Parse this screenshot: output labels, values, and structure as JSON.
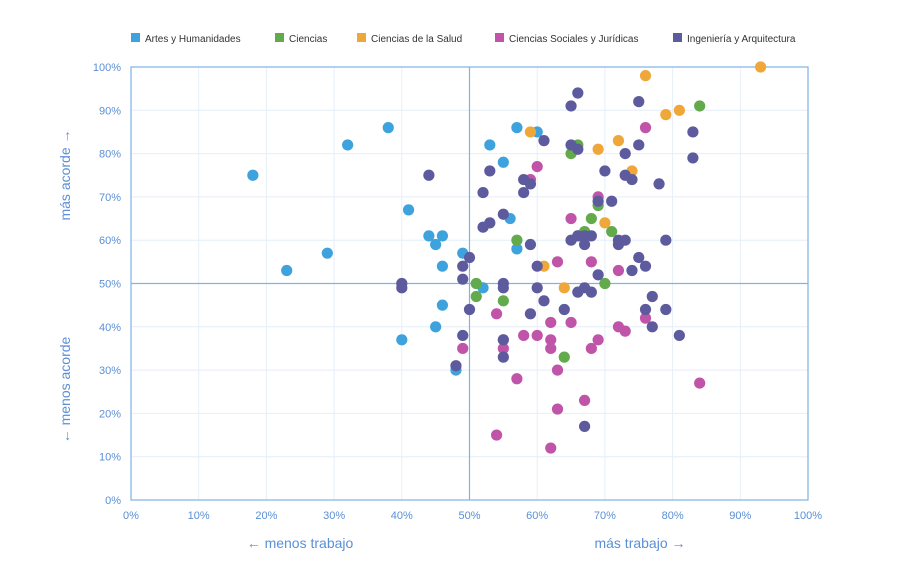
{
  "chart_data": {
    "type": "scatter",
    "xlabel_low": "← menos trabajo",
    "xlabel_high": "más trabajo →",
    "ylabel_low": "← menos acorde",
    "ylabel_high": "más acorde →",
    "xlim": [
      0,
      100
    ],
    "ylim": [
      0,
      100
    ],
    "x_ticks": [
      "0%",
      "10%",
      "20%",
      "30%",
      "40%",
      "50%",
      "60%",
      "70%",
      "80%",
      "90%",
      "100%"
    ],
    "y_ticks": [
      "0%",
      "10%",
      "20%",
      "30%",
      "40%",
      "50%",
      "60%",
      "70%",
      "80%",
      "90%",
      "100%"
    ],
    "grid": true,
    "reference_lines": {
      "x": 50,
      "y": 50
    },
    "legend_position": "top",
    "series": [
      {
        "name": "Artes y Humanidades",
        "color": "#3ea3dc",
        "points": [
          [
            18,
            75
          ],
          [
            23,
            53
          ],
          [
            29,
            57
          ],
          [
            32,
            82
          ],
          [
            38,
            86
          ],
          [
            40,
            37
          ],
          [
            41,
            67
          ],
          [
            44,
            61
          ],
          [
            45,
            59
          ],
          [
            45,
            40
          ],
          [
            46,
            61
          ],
          [
            46,
            54
          ],
          [
            46,
            45
          ],
          [
            48,
            30
          ],
          [
            49,
            57
          ],
          [
            52,
            49
          ],
          [
            53,
            82
          ],
          [
            55,
            78
          ],
          [
            56,
            65
          ],
          [
            57,
            86
          ],
          [
            57,
            58
          ],
          [
            60,
            85
          ]
        ]
      },
      {
        "name": "Ciencias",
        "color": "#62aa4c",
        "points": [
          [
            51,
            50
          ],
          [
            51,
            47
          ],
          [
            55,
            46
          ],
          [
            57,
            60
          ],
          [
            64,
            33
          ],
          [
            65,
            80
          ],
          [
            66,
            82
          ],
          [
            67,
            62
          ],
          [
            68,
            65
          ],
          [
            69,
            68
          ],
          [
            70,
            50
          ],
          [
            71,
            62
          ],
          [
            84,
            91
          ]
        ]
      },
      {
        "name": "Ciencias de la Salud",
        "color": "#f0a73a",
        "points": [
          [
            59,
            85
          ],
          [
            61,
            54
          ],
          [
            64,
            49
          ],
          [
            69,
            81
          ],
          [
            70,
            64
          ],
          [
            72,
            83
          ],
          [
            74,
            76
          ],
          [
            76,
            98
          ],
          [
            79,
            89
          ],
          [
            81,
            90
          ],
          [
            93,
            100
          ]
        ]
      },
      {
        "name": "Ciencias Sociales y Jurídicas",
        "color": "#c054a8",
        "points": [
          [
            49,
            35
          ],
          [
            54,
            43
          ],
          [
            54,
            15
          ],
          [
            55,
            37
          ],
          [
            55,
            35
          ],
          [
            57,
            28
          ],
          [
            58,
            38
          ],
          [
            59,
            74
          ],
          [
            60,
            77
          ],
          [
            60,
            38
          ],
          [
            62,
            41
          ],
          [
            62,
            37
          ],
          [
            62,
            35
          ],
          [
            62,
            12
          ],
          [
            63,
            30
          ],
          [
            63,
            55
          ],
          [
            63,
            21
          ],
          [
            65,
            65
          ],
          [
            65,
            41
          ],
          [
            66,
            61
          ],
          [
            67,
            23
          ],
          [
            68,
            55
          ],
          [
            68,
            35
          ],
          [
            69,
            37
          ],
          [
            69,
            70
          ],
          [
            72,
            40
          ],
          [
            72,
            53
          ],
          [
            73,
            39
          ],
          [
            76,
            42
          ],
          [
            76,
            86
          ],
          [
            84,
            27
          ]
        ]
      },
      {
        "name": "Ingeniería y Arquitectura",
        "color": "#5d5b9e",
        "points": [
          [
            40,
            50
          ],
          [
            40,
            49
          ],
          [
            44,
            75
          ],
          [
            48,
            31
          ],
          [
            49,
            38
          ],
          [
            49,
            54
          ],
          [
            49,
            51
          ],
          [
            50,
            56
          ],
          [
            50,
            44
          ],
          [
            52,
            71
          ],
          [
            52,
            63
          ],
          [
            53,
            76
          ],
          [
            53,
            64
          ],
          [
            55,
            66
          ],
          [
            55,
            50
          ],
          [
            55,
            49
          ],
          [
            55,
            37
          ],
          [
            55,
            33
          ],
          [
            58,
            74
          ],
          [
            58,
            71
          ],
          [
            59,
            73
          ],
          [
            59,
            59
          ],
          [
            59,
            43
          ],
          [
            60,
            54
          ],
          [
            60,
            49
          ],
          [
            61,
            83
          ],
          [
            61,
            46
          ],
          [
            64,
            44
          ],
          [
            65,
            91
          ],
          [
            65,
            82
          ],
          [
            65,
            60
          ],
          [
            66,
            94
          ],
          [
            66,
            81
          ],
          [
            66,
            61
          ],
          [
            66,
            48
          ],
          [
            67,
            61
          ],
          [
            67,
            59
          ],
          [
            67,
            49
          ],
          [
            67,
            17
          ],
          [
            68,
            61
          ],
          [
            68,
            48
          ],
          [
            69,
            69
          ],
          [
            69,
            52
          ],
          [
            70,
            76
          ],
          [
            71,
            69
          ],
          [
            72,
            60
          ],
          [
            72,
            59
          ],
          [
            73,
            80
          ],
          [
            73,
            75
          ],
          [
            73,
            60
          ],
          [
            74,
            74
          ],
          [
            74,
            53
          ],
          [
            75,
            92
          ],
          [
            75,
            82
          ],
          [
            75,
            56
          ],
          [
            76,
            54
          ],
          [
            76,
            44
          ],
          [
            77,
            47
          ],
          [
            77,
            40
          ],
          [
            78,
            73
          ],
          [
            79,
            60
          ],
          [
            79,
            44
          ],
          [
            81,
            38
          ],
          [
            83,
            85
          ],
          [
            83,
            79
          ]
        ]
      }
    ]
  }
}
